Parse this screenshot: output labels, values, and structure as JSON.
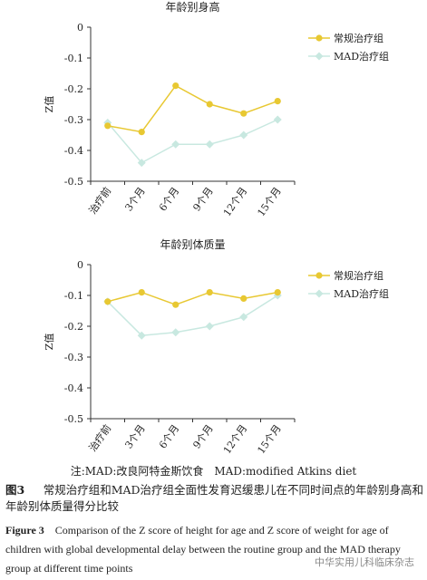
{
  "chart_data": [
    {
      "type": "line",
      "title": "年龄别身高",
      "ylabel": "Z值",
      "xlabel": "",
      "ylim": [
        -0.5,
        0
      ],
      "yticks": [
        "0",
        "-0.1",
        "-0.2",
        "-0.3",
        "-0.4",
        "-0.5"
      ],
      "categories": [
        "治疗前",
        "3个月",
        "6个月",
        "9个月",
        "12个月",
        "15个月"
      ],
      "legend_position": "top-right",
      "grid": false,
      "series": [
        {
          "name": "常规治疗组",
          "color": "#e8c832",
          "marker": "circle",
          "values": [
            -0.32,
            -0.34,
            -0.19,
            -0.25,
            -0.28,
            -0.24
          ]
        },
        {
          "name": "MAD治疗组",
          "color": "#c8e8e0",
          "marker": "diamond",
          "values": [
            -0.31,
            -0.44,
            -0.38,
            -0.38,
            -0.35,
            -0.3
          ]
        }
      ]
    },
    {
      "type": "line",
      "title": "年龄别体质量",
      "ylabel": "Z值",
      "xlabel": "",
      "ylim": [
        -0.5,
        0
      ],
      "yticks": [
        "0",
        "-0.1",
        "-0.2",
        "-0.3",
        "-0.4",
        "-0.5"
      ],
      "categories": [
        "治疗前",
        "3个月",
        "6个月",
        "9个月",
        "12个月",
        "15个月"
      ],
      "legend_position": "top-right",
      "grid": false,
      "series": [
        {
          "name": "常规治疗组",
          "color": "#e8c832",
          "marker": "circle",
          "values": [
            -0.12,
            -0.09,
            -0.13,
            -0.09,
            -0.11,
            -0.09
          ]
        },
        {
          "name": "MAD治疗组",
          "color": "#c8e8e0",
          "marker": "diamond",
          "values": [
            -0.12,
            -0.23,
            -0.22,
            -0.2,
            -0.17,
            -0.1
          ]
        }
      ]
    }
  ],
  "note": "注:MAD:改良阿特金斯饮食　MAD:modified Atkins diet",
  "caption_cn": {
    "label": "图3",
    "text": "常规治疗组和MAD治疗组全面性发育迟缓患儿在不同时间点的年龄别身高和年龄别体质量得分比较"
  },
  "caption_en": {
    "label": "Figure 3",
    "text": "Comparison of the Z score of height for age and Z score of weight for age of children with global developmental delay between the routine group and the MAD therapy group at different time points"
  },
  "watermark": "中华实用儿科临床杂志"
}
